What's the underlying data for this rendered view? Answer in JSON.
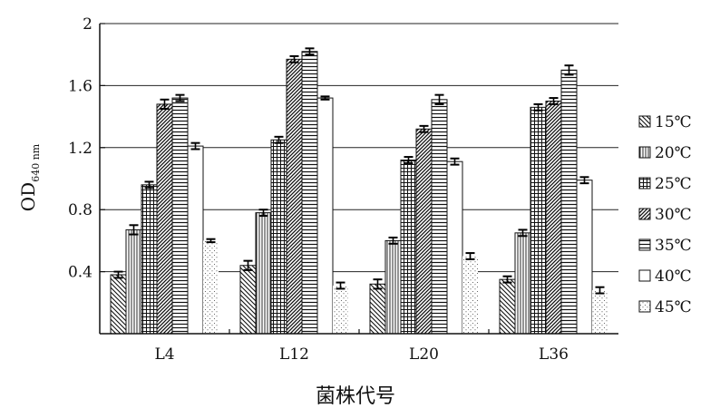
{
  "chart_data": {
    "type": "bar",
    "title": "",
    "xlabel": "菌株代号",
    "ylabel_main": "OD",
    "ylabel_sub": "640 nm",
    "ylim": [
      0,
      2
    ],
    "yticks": [
      "0.4",
      "0.8",
      "1.2",
      "1.6",
      "2"
    ],
    "grid": "horizontal",
    "legend_position": "right",
    "categories": [
      "L4",
      "L12",
      "L20",
      "L36"
    ],
    "series": [
      {
        "name": "15℃",
        "pattern": "diag-back",
        "values": [
          0.38,
          0.44,
          0.32,
          0.35
        ],
        "errors": [
          0.02,
          0.03,
          0.03,
          0.02
        ]
      },
      {
        "name": "20℃",
        "pattern": "vertical",
        "values": [
          0.67,
          0.78,
          0.6,
          0.65
        ],
        "errors": [
          0.03,
          0.02,
          0.02,
          0.02
        ]
      },
      {
        "name": "25℃",
        "pattern": "grid",
        "values": [
          0.96,
          1.25,
          1.12,
          1.46
        ],
        "errors": [
          0.02,
          0.02,
          0.02,
          0.02
        ]
      },
      {
        "name": "30℃",
        "pattern": "diag-dense",
        "values": [
          1.48,
          1.77,
          1.32,
          1.5
        ],
        "errors": [
          0.03,
          0.02,
          0.02,
          0.02
        ]
      },
      {
        "name": "35℃",
        "pattern": "horizontal",
        "values": [
          1.52,
          1.82,
          1.51,
          1.7
        ],
        "errors": [
          0.02,
          0.02,
          0.03,
          0.03
        ]
      },
      {
        "name": "40℃",
        "pattern": "empty",
        "values": [
          1.21,
          1.52,
          1.11,
          0.99
        ],
        "errors": [
          0.02,
          0.01,
          0.02,
          0.02
        ]
      },
      {
        "name": "45℃",
        "pattern": "dots",
        "values": [
          0.6,
          0.31,
          0.5,
          0.28
        ],
        "errors": [
          0.01,
          0.02,
          0.02,
          0.02
        ]
      }
    ]
  }
}
